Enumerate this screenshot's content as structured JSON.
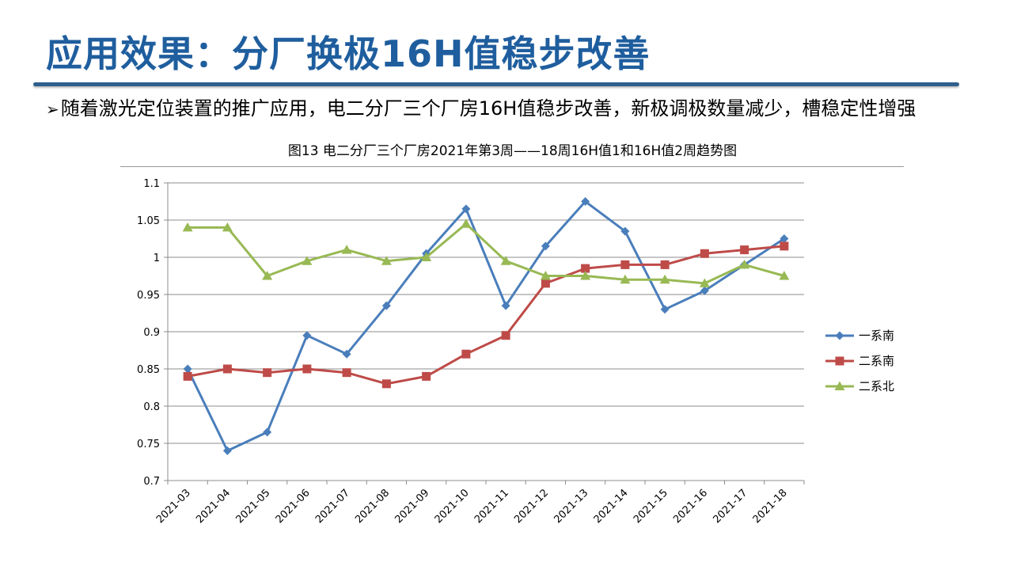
{
  "slide": {
    "title": "应用效果：分厂换极16H值稳步改善",
    "bullet_mark": "➢",
    "bullet_text": "随着激光定位装置的推广应用，电二分厂三个厂房16H值稳步改善，新极调极数量减少，槽稳定性增强"
  },
  "chart_data": {
    "type": "line",
    "title": "图13  电二分厂三个厂房2021年第3周——18周16H值1和16H值2周趋势图",
    "xlabel": "",
    "ylabel": "",
    "ylim": [
      0.7,
      1.1
    ],
    "yticks": [
      "0.7",
      "0.75",
      "0.8",
      "0.85",
      "0.9",
      "0.95",
      "1",
      "1.05",
      "1.1"
    ],
    "grid": "horizontal",
    "legend_position": "right",
    "categories": [
      "2021-03",
      "2021-04",
      "2021-05",
      "2021-06",
      "2021-07",
      "2021-08",
      "2021-09",
      "2021-10",
      "2021-11",
      "2021-12",
      "2021-13",
      "2021-14",
      "2021-15",
      "2021-16",
      "2021-17",
      "2021-18"
    ],
    "series": [
      {
        "name": "一系南",
        "color": "#4a7ebb",
        "marker": "diamond",
        "values": [
          0.85,
          0.74,
          0.765,
          0.895,
          0.87,
          0.935,
          1.005,
          1.065,
          0.935,
          1.015,
          1.075,
          1.035,
          0.93,
          0.955,
          0.99,
          1.025
        ]
      },
      {
        "name": "二系南",
        "color": "#be4b48",
        "marker": "square",
        "values": [
          0.84,
          0.85,
          0.845,
          0.85,
          0.845,
          0.83,
          0.84,
          0.87,
          0.895,
          0.965,
          0.985,
          0.99,
          0.99,
          1.005,
          1.01,
          1.015
        ]
      },
      {
        "name": "二系北",
        "color": "#98b954",
        "marker": "triangle",
        "values": [
          1.04,
          1.04,
          0.975,
          0.995,
          1.01,
          0.995,
          1.0,
          1.045,
          0.995,
          0.975,
          0.975,
          0.97,
          0.97,
          0.965,
          0.99,
          0.975
        ]
      }
    ]
  }
}
